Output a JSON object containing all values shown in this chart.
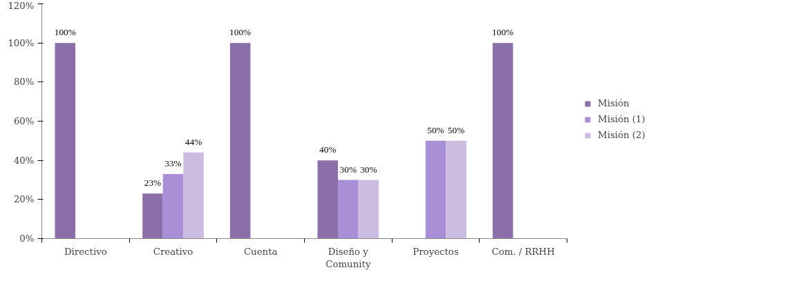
{
  "chart_data": {
    "type": "bar",
    "categories": [
      "Directivo",
      "Creativo",
      "Cuenta",
      "Diseño y Comunity",
      "Proyectos",
      "Com. / RRHH"
    ],
    "series": [
      {
        "name": "Misión",
        "color": "#8a6fa8",
        "values": [
          100,
          23,
          100,
          40,
          null,
          100
        ],
        "value_labels": [
          "100%",
          "23%",
          "100%",
          "40%",
          null,
          "100%"
        ]
      },
      {
        "name": "Misión (1)",
        "color": "#a98fd6",
        "values": [
          null,
          33,
          null,
          30,
          50,
          null
        ],
        "value_labels": [
          null,
          "33%",
          null,
          "30%",
          "50%",
          null
        ]
      },
      {
        "name": "Misión (2)",
        "color": "#cbbde0",
        "values": [
          null,
          44,
          null,
          30,
          50,
          null
        ],
        "value_labels": [
          null,
          "44%",
          null,
          "30%",
          "50%",
          null
        ]
      }
    ],
    "ylim": [
      0,
      120
    ],
    "yticks": [
      {
        "value": 0,
        "label": "0%"
      },
      {
        "value": 20,
        "label": "20%"
      },
      {
        "value": 40,
        "label": "40%"
      },
      {
        "value": 60,
        "label": "60%"
      },
      {
        "value": 80,
        "label": "80%"
      },
      {
        "value": 100,
        "label": "100%"
      },
      {
        "value": 120,
        "label": "120%"
      }
    ],
    "grid": false,
    "legend": "right"
  }
}
